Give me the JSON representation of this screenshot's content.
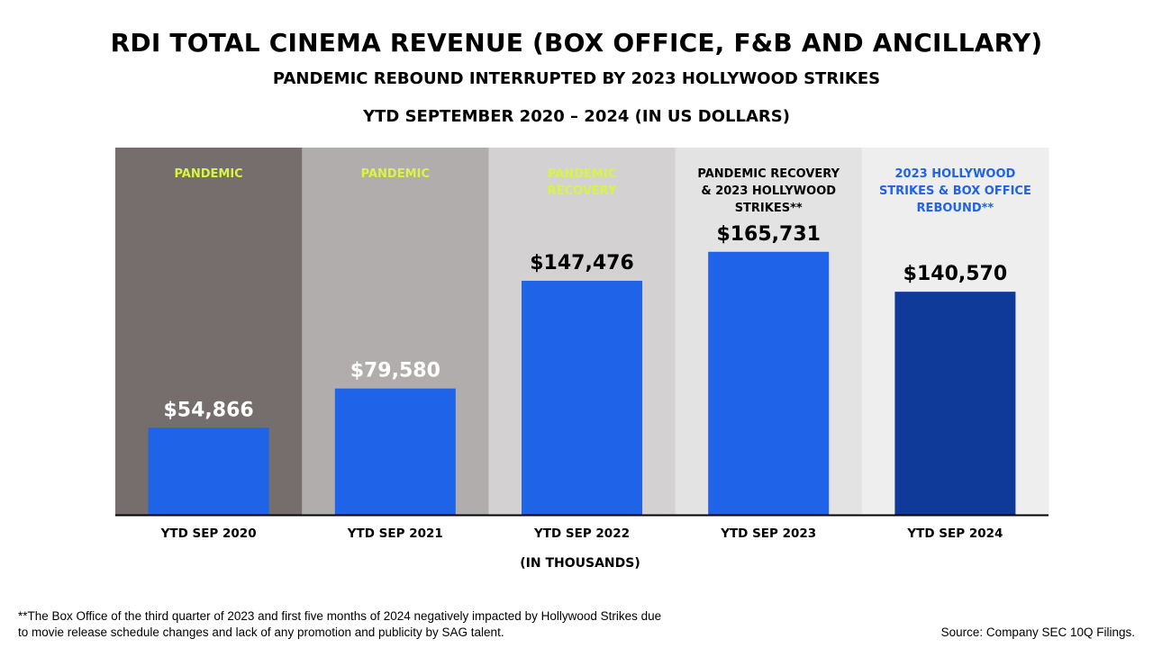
{
  "header": {
    "title": "RDI TOTAL CINEMA REVENUE (BOX OFFICE, F&B AND ANCILLARY)",
    "subtitle": "PANDEMIC REBOUND INTERRUPTED BY 2023 HOLLYWOOD STRIKES",
    "period": "YTD SEPTEMBER 2020 – 2024 (IN US DOLLARS)"
  },
  "chart_data": {
    "type": "bar",
    "categories": [
      "YTD SEP 2020",
      "YTD SEP 2021",
      "YTD SEP 2022",
      "YTD SEP 2023",
      "YTD SEP 2024"
    ],
    "values": [
      54866,
      79580,
      147476,
      165731,
      140570
    ],
    "value_labels": [
      "$54,866",
      "$79,580",
      "$147,476",
      "$165,731",
      "$140,570"
    ],
    "bar_colors": [
      "#1f63e8",
      "#1f63e8",
      "#1f63e8",
      "#1f63e8",
      "#103a9a"
    ],
    "value_label_colors": [
      "#ffffff",
      "#ffffff",
      "#000000",
      "#000000",
      "#000000"
    ],
    "ylim": [
      0,
      245000
    ],
    "grid": false,
    "legend": false,
    "xlabel": "(IN THOUSANDS)",
    "bands": [
      {
        "label": [
          "PANDEMIC"
        ],
        "bg": "#756e6d",
        "color": "#d9f542"
      },
      {
        "label": [
          "PANDEMIC"
        ],
        "bg": "#b1adac",
        "color": "#d9f542"
      },
      {
        "label": [
          "PANDEMIC",
          "RECOVERY"
        ],
        "bg": "#d3d1d1",
        "color": "#d9f542"
      },
      {
        "label": [
          "PANDEMIC RECOVERY",
          "& 2023 HOLLYWOOD",
          "STRIKES**"
        ],
        "bg": "#e3e3e3",
        "color": "#000000"
      },
      {
        "label": [
          "2023 HOLLYWOOD",
          "STRIKES & BOX OFFICE",
          "REBOUND**"
        ],
        "bg": "#eeeeee",
        "color": "#1f63e8"
      }
    ]
  },
  "footer": {
    "footnote": "**The Box Office of the third quarter of 2023 and first five months of 2024 negatively impacted by Hollywood Strikes due to movie release schedule changes and lack of any promotion and publicity by SAG talent.",
    "source": "Source: Company SEC 10Q Filings."
  }
}
